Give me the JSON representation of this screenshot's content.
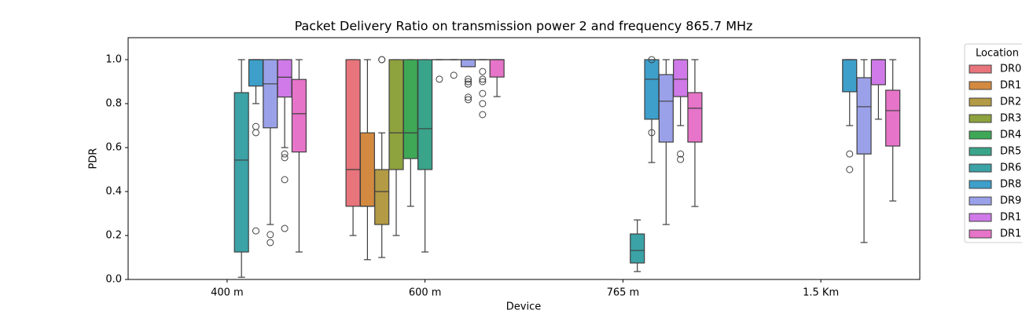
{
  "chart_data": {
    "type": "box",
    "title": "Packet Delivery Ratio on transmission power 2 and frequency 865.7 MHz",
    "x_label": "Device",
    "y_label": "PDR",
    "categories": [
      "400 m",
      "600 m",
      "765 m",
      "1.5 Km"
    ],
    "ylim": [
      0,
      1.1
    ],
    "yticks": [
      {
        "value": 0,
        "label": "0.0"
      },
      0.2,
      0.4,
      0.6,
      0.8,
      {
        "value": 1,
        "label": "1.0"
      }
    ],
    "legend_title": "Location",
    "legend_position": "right",
    "series": [
      {
        "name": "DR0",
        "color": "#e8747c",
        "values": [
          null,
          {
            "q1": 0.333,
            "median": 0.5,
            "q3": 1.0,
            "whislo": 0.2,
            "whishi": 1.0,
            "fliers": []
          },
          null,
          null
        ]
      },
      {
        "name": "DR1",
        "color": "#d38a40",
        "values": [
          null,
          {
            "q1": 0.333,
            "median": 0.333,
            "q3": 0.667,
            "whislo": 0.09,
            "whishi": 1.0,
            "fliers": []
          },
          null,
          null
        ]
      },
      {
        "name": "DR2",
        "color": "#b39a44",
        "values": [
          null,
          {
            "q1": 0.25,
            "median": 0.4,
            "q3": 0.5,
            "whislo": 0.1,
            "whishi": 0.667,
            "fliers": [
              1.0,
              1.0
            ]
          },
          null,
          null
        ]
      },
      {
        "name": "DR3",
        "color": "#8ea23e",
        "values": [
          null,
          {
            "q1": 0.5,
            "median": 0.667,
            "q3": 1.0,
            "whislo": 0.2,
            "whishi": 1.0,
            "fliers": []
          },
          null,
          null
        ]
      },
      {
        "name": "DR4",
        "color": "#3ea856",
        "values": [
          null,
          {
            "q1": 0.55,
            "median": 0.667,
            "q3": 1.0,
            "whislo": 0.333,
            "whishi": 1.0,
            "fliers": []
          },
          null,
          null
        ]
      },
      {
        "name": "DR5",
        "color": "#3aa48a",
        "values": [
          null,
          {
            "q1": 0.5,
            "median": 0.686,
            "q3": 1.0,
            "whislo": 0.125,
            "whishi": 1.0,
            "fliers": []
          },
          null,
          null
        ]
      },
      {
        "name": "DR6",
        "color": "#3ba2a6",
        "values": [
          {
            "q1": 0.125,
            "median": 0.543,
            "q3": 0.85,
            "whislo": 0.01,
            "whishi": 1.0,
            "fliers": []
          },
          {
            "q1": 1.0,
            "median": 1.0,
            "q3": 1.0,
            "whislo": 1.0,
            "whishi": 1.0,
            "fliers": [
              0.911
            ]
          },
          {
            "q1": 0.075,
            "median": 0.132,
            "q3": 0.207,
            "whislo": 0.036,
            "whishi": 0.271,
            "fliers": []
          },
          null
        ]
      },
      {
        "name": "DR8",
        "color": "#3d9fca",
        "values": [
          {
            "q1": 0.88,
            "median": 1.0,
            "q3": 1.0,
            "whislo": 0.8,
            "whishi": 1.0,
            "fliers": [
              0.696,
              0.668,
              0.221
            ]
          },
          {
            "q1": 1.0,
            "median": 1.0,
            "q3": 1.0,
            "whislo": 1.0,
            "whishi": 1.0,
            "fliers": [
              0.929
            ]
          },
          {
            "q1": 0.729,
            "median": 0.911,
            "q3": 1.0,
            "whislo": 0.532,
            "whishi": 1.0,
            "fliers": [
              1.0,
              0.668
            ]
          },
          {
            "q1": 0.854,
            "median": 1.0,
            "q3": 1.0,
            "whislo": 0.7,
            "whishi": 1.0,
            "fliers": [
              0.571,
              0.5
            ]
          }
        ]
      },
      {
        "name": "DR9",
        "color": "#9ba1e8",
        "values": [
          {
            "q1": 0.69,
            "median": 0.89,
            "q3": 1.0,
            "whislo": 0.25,
            "whishi": 1.0,
            "fliers": [
              0.204,
              0.168
            ]
          },
          {
            "q1": 0.968,
            "median": 1.0,
            "q3": 1.0,
            "whislo": 0.968,
            "whishi": 1.0,
            "fliers": [
              0.911,
              0.9,
              0.889,
              0.829,
              0.818
            ]
          },
          {
            "q1": 0.625,
            "median": 0.811,
            "q3": 0.932,
            "whislo": 0.25,
            "whishi": 1.0,
            "fliers": []
          },
          {
            "q1": 0.571,
            "median": 0.786,
            "q3": 0.918,
            "whislo": 0.168,
            "whishi": 1.0,
            "fliers": []
          }
        ]
      },
      {
        "name": "DR1",
        "color": "#cf7ae8",
        "values": [
          {
            "q1": 0.83,
            "median": 0.92,
            "q3": 1.0,
            "whislo": 0.6,
            "whishi": 1.0,
            "fliers": [
              0.571,
              0.554,
              0.454,
              0.232
            ]
          },
          {
            "q1": 1.0,
            "median": 1.0,
            "q3": 1.0,
            "whislo": 1.0,
            "whishi": 1.0,
            "fliers": [
              0.946,
              0.911,
              0.9,
              0.846,
              0.8,
              0.75
            ]
          },
          {
            "q1": 0.832,
            "median": 0.911,
            "q3": 1.0,
            "whislo": 0.7,
            "whishi": 1.0,
            "fliers": [
              0.571,
              0.546
            ]
          },
          {
            "q1": 0.886,
            "median": 1.0,
            "q3": 1.0,
            "whislo": 0.729,
            "whishi": 1.0,
            "fliers": []
          }
        ]
      },
      {
        "name": "DR1",
        "color": "#e674c8",
        "values": [
          {
            "q1": 0.58,
            "median": 0.754,
            "q3": 0.91,
            "whislo": 0.125,
            "whishi": 1.0,
            "fliers": []
          },
          {
            "q1": 0.921,
            "median": 1.0,
            "q3": 1.0,
            "whislo": 0.832,
            "whishi": 1.0,
            "fliers": []
          },
          {
            "q1": 0.625,
            "median": 0.779,
            "q3": 0.85,
            "whislo": 0.332,
            "whishi": 1.0,
            "fliers": []
          },
          {
            "q1": 0.607,
            "median": 0.768,
            "q3": 0.861,
            "whislo": 0.357,
            "whishi": 1.0,
            "fliers": []
          }
        ]
      }
    ]
  }
}
